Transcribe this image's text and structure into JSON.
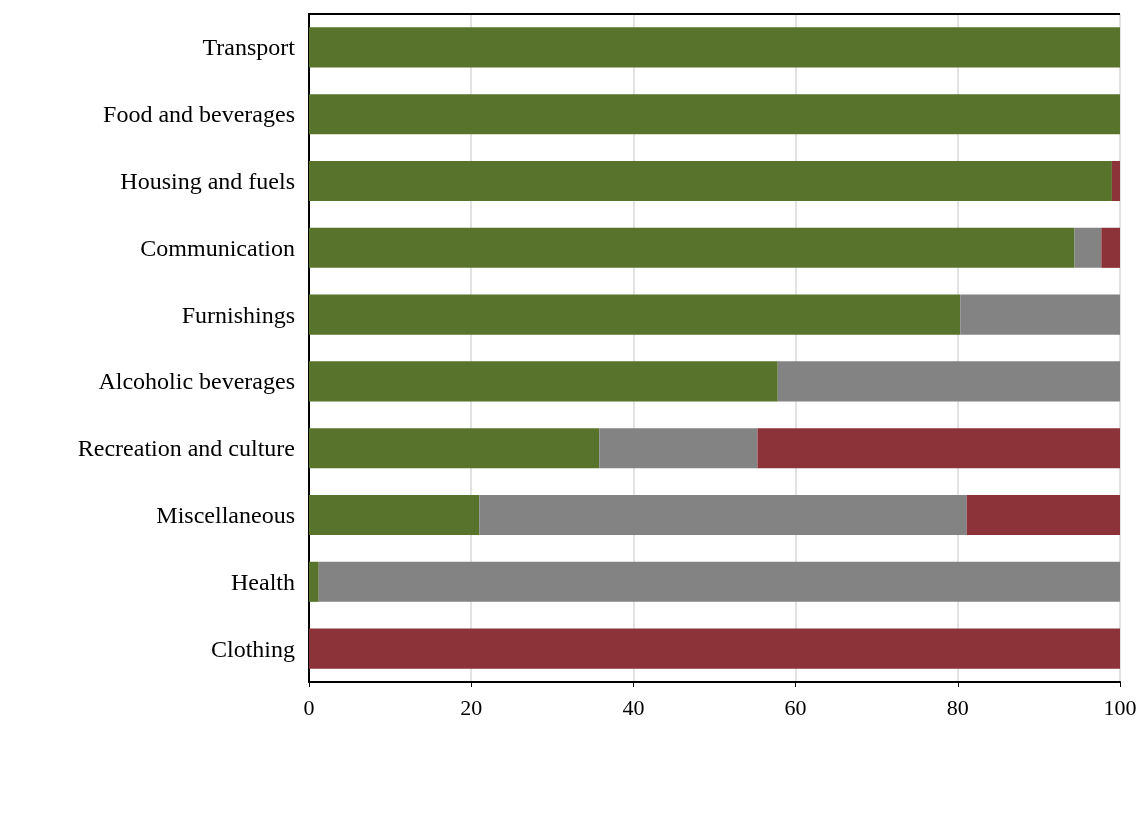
{
  "chart_data": {
    "type": "bar",
    "orientation": "horizontal",
    "stacked": true,
    "categories": [
      "Transport",
      "Food and beverages",
      "Housing and fuels",
      "Communication",
      "Furnishings",
      "Alcoholic beverages",
      "Recreation and culture",
      "Miscellaneous",
      "Health",
      "Clothing"
    ],
    "series": [
      {
        "color": "#58732b",
        "values": [
          100,
          100,
          99.0,
          94.4,
          80.3,
          57.8,
          35.8,
          21.0,
          1.2,
          0
        ]
      },
      {
        "color": "#838383",
        "values": [
          0,
          0,
          0,
          3.3,
          19.7,
          42.2,
          19.5,
          60.1,
          98.8,
          0
        ]
      },
      {
        "color": "#8b3339",
        "values": [
          0,
          0,
          1.0,
          2.3,
          0,
          0,
          44.7,
          18.9,
          0,
          100
        ]
      }
    ],
    "xlim": [
      0,
      100
    ],
    "xticks": [
      0,
      20,
      40,
      60,
      80,
      100
    ],
    "grid": "x"
  }
}
